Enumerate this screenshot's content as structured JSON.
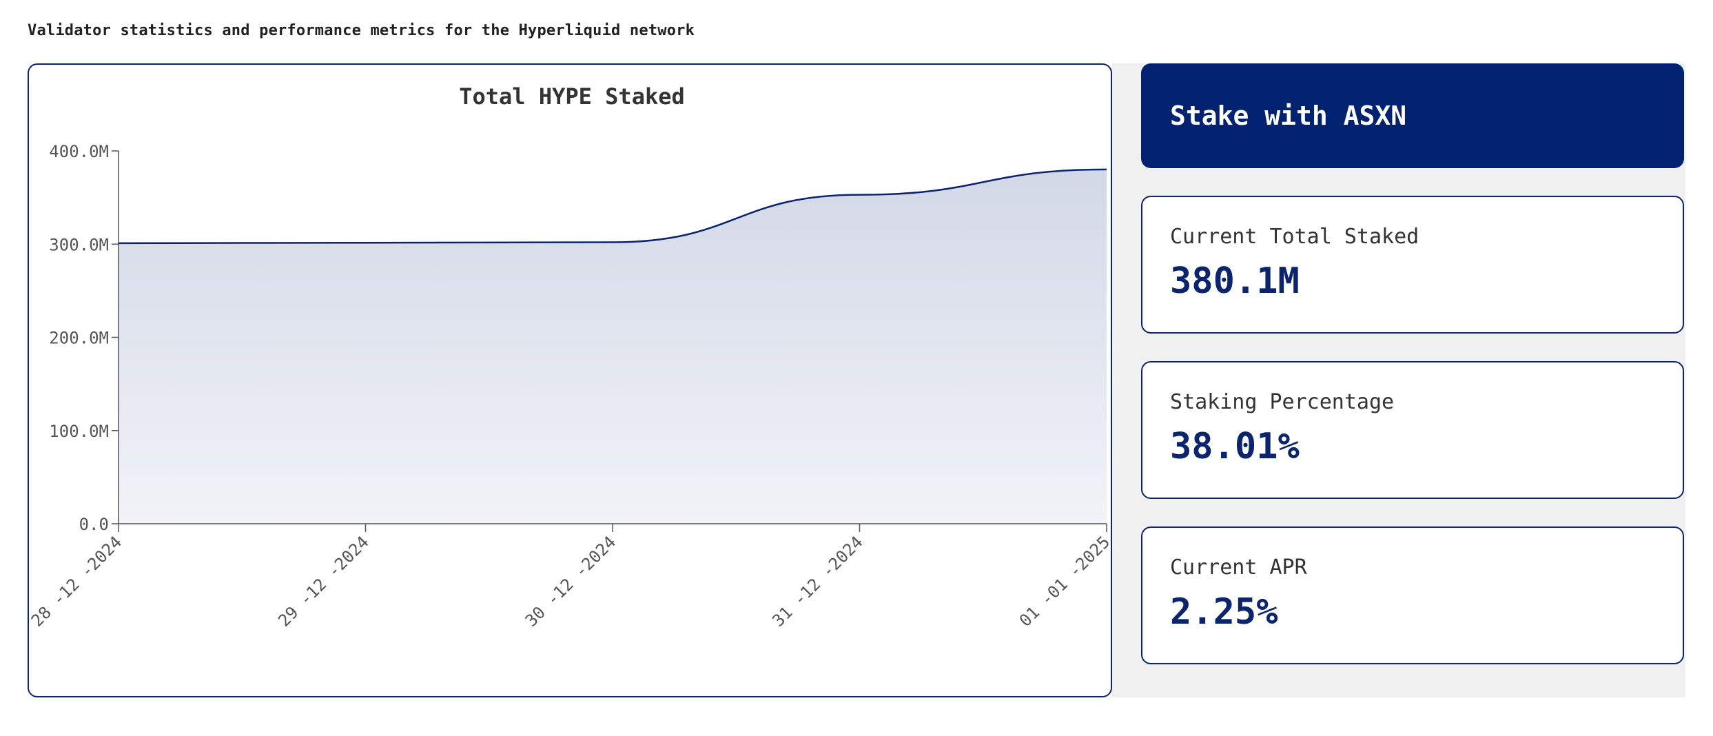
{
  "header": {
    "subtitle": "Validator statistics and performance metrics for the Hyperliquid network"
  },
  "chart_data": {
    "type": "area",
    "title": "Total HYPE Staked",
    "xlabel": "",
    "ylabel": "",
    "x": [
      "28 -12 -2024",
      "29 -12 -2024",
      "30 -12 -2024",
      "31 -12 -2024",
      "01 -01 -2025"
    ],
    "values": [
      301000000,
      301500000,
      302000000,
      353000000,
      380100000
    ],
    "yticks": [
      "0.0",
      "100.0M",
      "200.0M",
      "300.0M",
      "400.0M"
    ],
    "ylim": [
      0,
      400000000
    ],
    "grid": false,
    "legend": "none",
    "colors": {
      "line": "#0b2470",
      "fill_top": "#d2d8e6",
      "fill_bottom": "#f2f3f8"
    }
  },
  "sidebar": {
    "cta_label": "Stake with ASXN",
    "cards": [
      {
        "label": "Current Total Staked",
        "value": "380.1M"
      },
      {
        "label": "Staking Percentage",
        "value": "38.01%"
      },
      {
        "label": "Current APR",
        "value": "2.25%"
      }
    ]
  },
  "colors": {
    "accent": "#012270",
    "border": "#0b2470",
    "panel_bg": "#f0f0f0"
  }
}
